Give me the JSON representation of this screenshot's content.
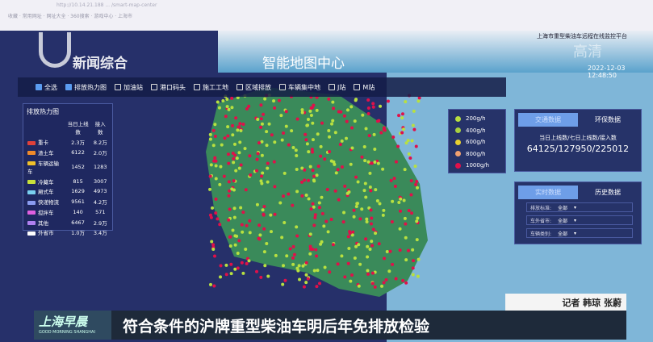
{
  "browser": {
    "url": "http://10.14.21.188 ... /smart-map-center",
    "bookmarks": "收藏  · 常用网址  · 网址大全  · 360搜索  · 游戏中心  · 上海市"
  },
  "header": {
    "platform": "上海市重型柴油车远程在线监控平台",
    "timestamp": "2022-12-03 12:48:50",
    "title": "智能地图中心"
  },
  "channel": {
    "logo": "新闻综合",
    "watermark": "高清"
  },
  "filters": [
    {
      "label": "全选",
      "checked": true
    },
    {
      "label": "排放热力图",
      "checked": true
    },
    {
      "label": "加油站",
      "checked": false
    },
    {
      "label": "港口码头",
      "checked": false
    },
    {
      "label": "施工工地",
      "checked": false
    },
    {
      "label": "区域排放",
      "checked": false
    },
    {
      "label": "车辆集中地",
      "checked": false
    },
    {
      "label": "J站",
      "checked": false
    },
    {
      "label": "M站",
      "checked": false
    }
  ],
  "heat_panel": {
    "title": "排放热力图",
    "col1": "当日上线数",
    "col2": "接入数",
    "rows": [
      {
        "name": "重卡",
        "online": "2.3万",
        "access": "8.2万",
        "color": "#e0413a"
      },
      {
        "name": "渣土车",
        "online": "6122",
        "access": "2.0万",
        "color": "#f08a2a"
      },
      {
        "name": "车辆运输车",
        "online": "1452",
        "access": "1283",
        "color": "#f0c02a"
      },
      {
        "name": "冷藏车",
        "online": "815",
        "access": "3007",
        "color": "#c8e03a"
      },
      {
        "name": "厢式车",
        "online": "1629",
        "access": "4973",
        "color": "#7ad0f0"
      },
      {
        "name": "快递物流",
        "online": "9561",
        "access": "4.2万",
        "color": "#8a9cf0"
      },
      {
        "name": "搅拌车",
        "online": "140",
        "access": "571",
        "color": "#e060e0"
      },
      {
        "name": "其他",
        "online": "6467",
        "access": "2.9万",
        "color": "#b080f0"
      },
      {
        "name": "外省市",
        "online": "1.0万",
        "access": "3.4万",
        "color": "#ffffff"
      }
    ]
  },
  "legend": [
    {
      "label": "200g/h",
      "color": "#b8e040"
    },
    {
      "label": "400g/h",
      "color": "#a8d040"
    },
    {
      "label": "600g/h",
      "color": "#e8d030"
    },
    {
      "label": "800g/h",
      "color": "#f0a070"
    },
    {
      "label": "1000g/h",
      "color": "#e0104a"
    }
  ],
  "traffic": {
    "tabs": [
      "交通数据",
      "环保数据"
    ],
    "label": "当日上线数/七日上线数/接入数",
    "value": "64125/127950/225012"
  },
  "realtime": {
    "tabs": [
      "实时数据",
      "历史数据"
    ],
    "selects": [
      {
        "label": "排放标准:",
        "value": "全部"
      },
      {
        "label": "车外省市:",
        "value": "全部"
      },
      {
        "label": "车辆类别:",
        "value": "全部"
      }
    ]
  },
  "caption": {
    "reporter": "记者 韩琼 张蔚",
    "brand": "上海早晨",
    "brand_en": "GOOD MORNING SHANGHAI",
    "headline": "符合条件的沪牌重型柴油车明后年免排放检验"
  }
}
